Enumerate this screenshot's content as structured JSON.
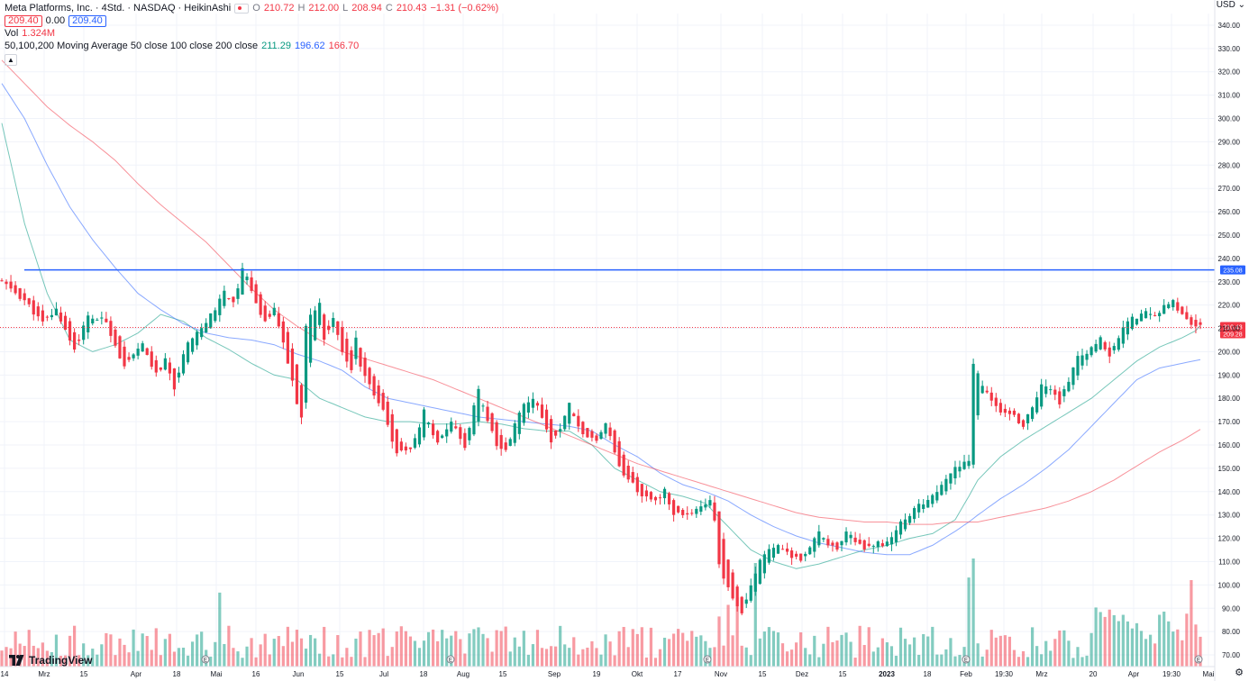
{
  "legend": {
    "title": "Meta Platforms, Inc. · 4Std. · NASDAQ · HeikinAshi",
    "o_label": "O",
    "o_value": "210.72",
    "h_label": "H",
    "h_value": "212.00",
    "l_label": "L",
    "l_value": "208.94",
    "c_label": "C",
    "c_value": "210.43",
    "change": "−1.31 (−0.62%)",
    "bid": "209.40",
    "spread": "0.00",
    "ask": "209.40",
    "vol_label": "Vol",
    "vol_value": "1.324M",
    "ma_label": "50,100,200 Moving Average 50 close 100 close 200 close",
    "ma50_value": "211.29",
    "ma100_value": "196.62",
    "ma200_value": "166.70",
    "ma50_color": "#089981",
    "ma100_color": "#2962ff",
    "ma200_color": "#f23645"
  },
  "branding": {
    "name": "TradingView",
    "logo_icon": "tradingview-logo-icon"
  },
  "currency": "USD",
  "settings_icon": "gear-icon",
  "chart_data": {
    "type": "candlestick",
    "ylim": [
      65,
      345
    ],
    "y_ticks": [
      70,
      80,
      90,
      100,
      110,
      120,
      130,
      140,
      150,
      160,
      170,
      180,
      190,
      200,
      210,
      220,
      230,
      240,
      250,
      260,
      270,
      280,
      290,
      300,
      310,
      320,
      330,
      340
    ],
    "x_ticks": [
      "14",
      "Mrz",
      "15",
      "Apr",
      "18",
      "Mai",
      "16",
      "Jun",
      "15",
      "Jul",
      "18",
      "Aug",
      "15",
      "Sep",
      "19",
      "Okt",
      "17",
      "Nov",
      "15",
      "Dez",
      "15",
      "2023",
      "18",
      "Feb",
      "19:30",
      "Mrz",
      "20",
      "Apr",
      "19:30",
      "Mai"
    ],
    "horizontal_line": {
      "value": 235.08,
      "label": "235.08"
    },
    "last_price": {
      "value": 210.43,
      "label": "210.43"
    },
    "prev_price_label": "209.28",
    "price_path": [
      [
        0,
        230
      ],
      [
        5,
        222
      ],
      [
        9,
        212
      ],
      [
        12,
        218
      ],
      [
        16,
        201
      ],
      [
        19,
        215
      ],
      [
        23,
        213
      ],
      [
        27,
        193
      ],
      [
        31,
        203
      ],
      [
        34,
        190
      ],
      [
        36,
        196
      ],
      [
        38,
        185
      ],
      [
        41,
        205
      ],
      [
        45,
        212
      ],
      [
        49,
        225
      ],
      [
        51,
        220
      ],
      [
        53,
        236
      ],
      [
        55,
        227
      ],
      [
        58,
        212
      ],
      [
        60,
        218
      ],
      [
        62,
        203
      ],
      [
        64,
        188
      ],
      [
        65,
        178
      ],
      [
        66,
        172
      ],
      [
        67,
        212
      ],
      [
        69,
        218
      ],
      [
        70,
        222
      ],
      [
        71,
        205
      ],
      [
        73,
        215
      ],
      [
        74,
        207
      ],
      [
        76,
        195
      ],
      [
        77,
        191
      ],
      [
        78,
        205
      ],
      [
        79,
        193
      ],
      [
        81,
        185
      ],
      [
        84,
        176
      ],
      [
        87,
        156
      ],
      [
        90,
        158
      ],
      [
        93,
        174
      ],
      [
        96,
        160
      ],
      [
        99,
        170
      ],
      [
        102,
        158
      ],
      [
        104,
        178
      ],
      [
        105,
        183
      ],
      [
        107,
        170
      ],
      [
        109,
        160
      ],
      [
        111,
        157
      ],
      [
        113,
        169
      ],
      [
        115,
        177
      ],
      [
        117,
        181
      ],
      [
        119,
        172
      ],
      [
        121,
        162
      ],
      [
        123,
        168
      ],
      [
        125,
        178
      ],
      [
        128,
        164
      ],
      [
        131,
        161
      ],
      [
        133,
        169
      ],
      [
        135,
        157
      ],
      [
        137,
        146
      ],
      [
        140,
        141
      ],
      [
        142,
        137
      ],
      [
        144,
        137
      ],
      [
        146,
        140
      ],
      [
        148,
        130
      ],
      [
        150,
        130
      ],
      [
        152,
        131
      ],
      [
        154,
        133
      ],
      [
        156,
        137
      ],
      [
        157,
        127
      ],
      [
        158,
        108
      ],
      [
        160,
        98
      ],
      [
        162,
        92
      ],
      [
        163,
        89
      ],
      [
        165,
        100
      ],
      [
        167,
        111
      ],
      [
        169,
        116
      ],
      [
        171,
        118
      ],
      [
        173,
        113
      ],
      [
        176,
        111
      ],
      [
        178,
        115
      ],
      [
        180,
        123
      ],
      [
        182,
        118
      ],
      [
        184,
        114
      ],
      [
        186,
        122
      ],
      [
        188,
        119
      ],
      [
        190,
        116
      ],
      [
        192,
        118
      ],
      [
        194,
        117
      ],
      [
        196,
        121
      ],
      [
        198,
        127
      ],
      [
        201,
        132
      ],
      [
        204,
        137
      ],
      [
        207,
        142
      ],
      [
        210,
        150
      ],
      [
        212,
        153
      ],
      [
        213,
        152
      ],
      [
        214,
        194
      ],
      [
        216,
        185
      ],
      [
        218,
        180
      ],
      [
        220,
        175
      ],
      [
        223,
        172
      ],
      [
        225,
        169
      ],
      [
        227,
        175
      ],
      [
        229,
        186
      ],
      [
        231,
        185
      ],
      [
        233,
        178
      ],
      [
        235,
        188
      ],
      [
        237,
        197
      ],
      [
        240,
        202
      ],
      [
        242,
        205
      ],
      [
        244,
        199
      ],
      [
        246,
        207
      ],
      [
        248,
        213
      ],
      [
        250,
        215
      ],
      [
        252,
        217
      ],
      [
        254,
        215
      ],
      [
        256,
        219
      ],
      [
        258,
        221
      ],
      [
        260,
        216
      ],
      [
        262,
        212
      ],
      [
        264,
        210.43
      ]
    ],
    "series": [
      {
        "name": "50",
        "color": "#089981",
        "values": [
          [
            0,
            298
          ],
          [
            5,
            255
          ],
          [
            10,
            225
          ],
          [
            15,
            205
          ],
          [
            20,
            200
          ],
          [
            25,
            203
          ],
          [
            30,
            208
          ],
          [
            35,
            216
          ],
          [
            40,
            213
          ],
          [
            45,
            206
          ],
          [
            50,
            201
          ],
          [
            55,
            195
          ],
          [
            60,
            190
          ],
          [
            65,
            188
          ],
          [
            70,
            180
          ],
          [
            75,
            176
          ],
          [
            80,
            172
          ],
          [
            85,
            170
          ],
          [
            90,
            170
          ],
          [
            95,
            169
          ],
          [
            100,
            169
          ],
          [
            105,
            170
          ],
          [
            110,
            169
          ],
          [
            115,
            167
          ],
          [
            120,
            166
          ],
          [
            125,
            166
          ],
          [
            130,
            160
          ],
          [
            135,
            150
          ],
          [
            140,
            145
          ],
          [
            145,
            140
          ],
          [
            150,
            138
          ],
          [
            155,
            135
          ],
          [
            160,
            125
          ],
          [
            165,
            115
          ],
          [
            170,
            110
          ],
          [
            175,
            107
          ],
          [
            180,
            109
          ],
          [
            185,
            112
          ],
          [
            190,
            115
          ],
          [
            195,
            117
          ],
          [
            200,
            120
          ],
          [
            205,
            122
          ],
          [
            210,
            128
          ],
          [
            213,
            138
          ],
          [
            215,
            145
          ],
          [
            220,
            155
          ],
          [
            225,
            162
          ],
          [
            230,
            168
          ],
          [
            235,
            174
          ],
          [
            240,
            180
          ],
          [
            245,
            188
          ],
          [
            250,
            196
          ],
          [
            255,
            202
          ],
          [
            260,
            206
          ],
          [
            263,
            209
          ],
          [
            264,
            211.29
          ]
        ]
      },
      {
        "name": "100",
        "color": "#2962ff",
        "values": [
          [
            0,
            315
          ],
          [
            5,
            300
          ],
          [
            10,
            280
          ],
          [
            15,
            262
          ],
          [
            20,
            248
          ],
          [
            25,
            236
          ],
          [
            30,
            225
          ],
          [
            35,
            218
          ],
          [
            40,
            212
          ],
          [
            45,
            208
          ],
          [
            50,
            206
          ],
          [
            55,
            205
          ],
          [
            60,
            203
          ],
          [
            65,
            199
          ],
          [
            70,
            196
          ],
          [
            75,
            192
          ],
          [
            80,
            185
          ],
          [
            85,
            180
          ],
          [
            90,
            178
          ],
          [
            95,
            176
          ],
          [
            100,
            174
          ],
          [
            105,
            172
          ],
          [
            110,
            171
          ],
          [
            115,
            170
          ],
          [
            120,
            169
          ],
          [
            125,
            168
          ],
          [
            130,
            166
          ],
          [
            135,
            160
          ],
          [
            140,
            155
          ],
          [
            145,
            148
          ],
          [
            150,
            143
          ],
          [
            155,
            140
          ],
          [
            160,
            136
          ],
          [
            165,
            130
          ],
          [
            170,
            125
          ],
          [
            175,
            121
          ],
          [
            180,
            118
          ],
          [
            185,
            116
          ],
          [
            190,
            114
          ],
          [
            195,
            113
          ],
          [
            200,
            113
          ],
          [
            205,
            117
          ],
          [
            210,
            123
          ],
          [
            213,
            127
          ],
          [
            215,
            130
          ],
          [
            220,
            137
          ],
          [
            225,
            143
          ],
          [
            230,
            150
          ],
          [
            235,
            158
          ],
          [
            240,
            168
          ],
          [
            245,
            178
          ],
          [
            250,
            188
          ],
          [
            255,
            193
          ],
          [
            260,
            195
          ],
          [
            264,
            196.62
          ]
        ]
      },
      {
        "name": "200",
        "color": "#f23645",
        "values": [
          [
            0,
            325
          ],
          [
            5,
            315
          ],
          [
            10,
            305
          ],
          [
            15,
            297
          ],
          [
            20,
            290
          ],
          [
            25,
            282
          ],
          [
            30,
            272
          ],
          [
            35,
            263
          ],
          [
            40,
            255
          ],
          [
            45,
            247
          ],
          [
            50,
            237
          ],
          [
            55,
            227
          ],
          [
            60,
            218
          ],
          [
            65,
            211
          ],
          [
            70,
            205
          ],
          [
            75,
            200
          ],
          [
            80,
            197
          ],
          [
            85,
            194
          ],
          [
            90,
            191
          ],
          [
            95,
            188
          ],
          [
            100,
            184
          ],
          [
            105,
            180
          ],
          [
            110,
            176
          ],
          [
            115,
            172
          ],
          [
            120,
            168
          ],
          [
            125,
            164
          ],
          [
            130,
            160
          ],
          [
            135,
            156
          ],
          [
            140,
            152
          ],
          [
            145,
            149
          ],
          [
            150,
            146
          ],
          [
            155,
            143
          ],
          [
            160,
            140
          ],
          [
            165,
            137
          ],
          [
            170,
            134
          ],
          [
            175,
            131
          ],
          [
            180,
            129
          ],
          [
            185,
            128
          ],
          [
            190,
            127
          ],
          [
            195,
            127
          ],
          [
            200,
            126
          ],
          [
            205,
            126
          ],
          [
            210,
            127
          ],
          [
            213,
            127
          ],
          [
            215,
            127
          ],
          [
            220,
            129
          ],
          [
            225,
            131
          ],
          [
            230,
            133
          ],
          [
            235,
            136
          ],
          [
            240,
            140
          ],
          [
            245,
            145
          ],
          [
            250,
            151
          ],
          [
            255,
            157
          ],
          [
            260,
            162
          ],
          [
            264,
            166.7
          ]
        ]
      }
    ],
    "volume_max": 100
  }
}
